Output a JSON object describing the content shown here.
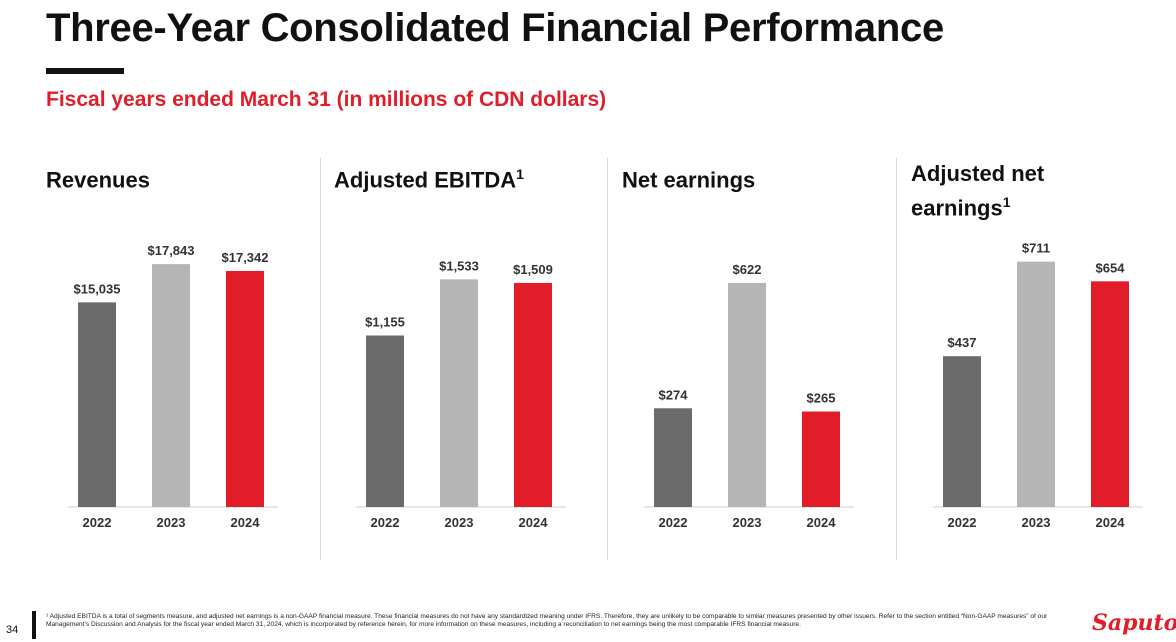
{
  "slide": {
    "title": "Three-Year Consolidated Financial Performance",
    "subtitle": "Fiscal years ended March 31 (in millions of CDN dollars)",
    "page_number": "34",
    "logo": "Saputo",
    "footnote": "¹ Adjusted EBITDA is a total of segments measure, and adjusted net earnings is a non-GAAP financial measure. These financial measures do not have any standardized meaning under IFRS. Therefore, they are unlikely to be comparable to similar measures presented by other issuers. Refer to the section entitled “Non-GAAP measures” of our Management’s Discussion and Analysis for the fiscal year ended March 31, 2024, which is incorporated by reference herein, for more information on these measures, including a reconciliation to net earnings being the most comparable IFRS financial measure."
  },
  "colors": {
    "accent_red": "#e21d2a",
    "bar_2022": "#6b6b6b",
    "bar_2023": "#b5b5b5",
    "bar_2024": "#e21d2a"
  },
  "chart_data": [
    {
      "type": "bar",
      "title": "Revenues",
      "title_sup": "",
      "categories": [
        "2022",
        "2023",
        "2024"
      ],
      "values": [
        15035,
        17843,
        17342
      ],
      "labels": [
        "$15,035",
        "$17,843",
        "$17,342"
      ],
      "ylim": [
        0,
        18000
      ]
    },
    {
      "type": "bar",
      "title": "Adjusted EBITDA",
      "title_sup": "1",
      "categories": [
        "2022",
        "2023",
        "2024"
      ],
      "values": [
        1155,
        1533,
        1509
      ],
      "labels": [
        "$1,155",
        "$1,533",
        "$1,509"
      ],
      "ylim": [
        0,
        1650
      ]
    },
    {
      "type": "bar",
      "title": "Net earnings",
      "title_sup": "",
      "categories": [
        "2022",
        "2023",
        "2024"
      ],
      "values": [
        274,
        622,
        265
      ],
      "labels": [
        "$274",
        "$622",
        "$265"
      ],
      "ylim": [
        0,
        680
      ]
    },
    {
      "type": "bar",
      "title": "Adjusted net earnings",
      "title_sup": "1",
      "categories": [
        "2022",
        "2023",
        "2024"
      ],
      "values": [
        437,
        711,
        654
      ],
      "labels": [
        "$437",
        "$711",
        "$654"
      ],
      "ylim": [
        0,
        710
      ]
    }
  ]
}
